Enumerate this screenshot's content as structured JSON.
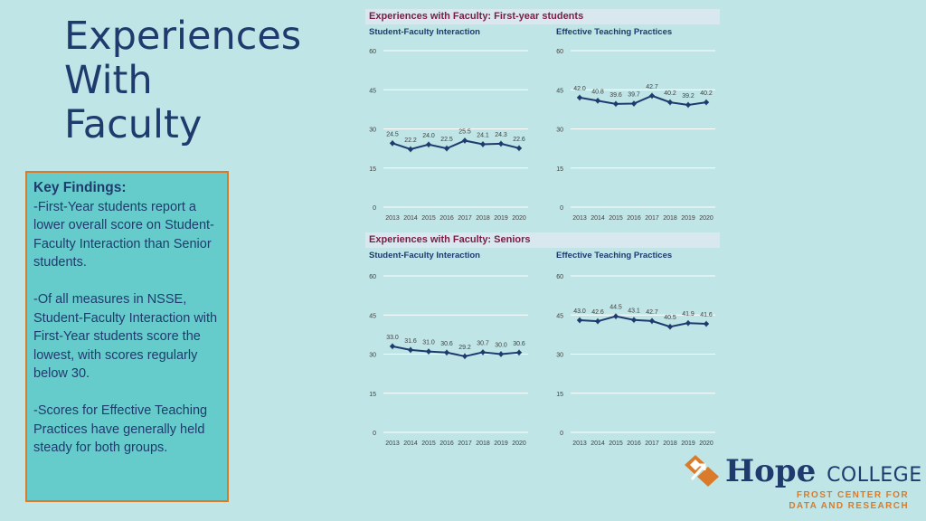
{
  "title_lines": [
    "Experiences",
    "With",
    "Faculty"
  ],
  "findings": {
    "heading": "Key Findings:",
    "items": [
      "-First-Year students report a lower overall score on Student-Faculty Interaction than Senior students.",
      "-Of all measures in NSSE, Student-Faculty Interaction with First-Year students score the lowest, with scores regularly below 30.",
      "-Scores for Effective Teaching Practices have generally held steady for both groups."
    ]
  },
  "sections": [
    {
      "title": "Experiences with Faculty: First-year students"
    },
    {
      "title": "Experiences with Faculty: Seniors"
    }
  ],
  "logo": {
    "brand": "Hope",
    "college": "COLLEGE",
    "line1": "FROST CENTER FOR",
    "line2": "DATA AND RESEARCH"
  },
  "chart_data": [
    {
      "type": "line",
      "title": "Student-Faculty Interaction",
      "group": "First-year students",
      "x": [
        "2013",
        "2014",
        "2015",
        "2016",
        "2017",
        "2018",
        "2019",
        "2020"
      ],
      "values": [
        24.5,
        22.2,
        24.0,
        22.5,
        25.5,
        24.1,
        24.3,
        22.6
      ],
      "labels": [
        "24.5",
        "22.2",
        "24.0",
        "22.5",
        "25.5",
        "24.1",
        "24.3",
        "22.6"
      ],
      "yticks": [
        "0",
        "15",
        "30",
        "45",
        "60"
      ],
      "ylim": [
        0,
        60
      ],
      "color": "#1f3b6e"
    },
    {
      "type": "line",
      "title": "Effective Teaching Practices",
      "group": "First-year students",
      "x": [
        "2013",
        "2014",
        "2015",
        "2016",
        "2017",
        "2018",
        "2019",
        "2020"
      ],
      "values": [
        42.0,
        40.8,
        39.6,
        39.7,
        42.7,
        40.2,
        39.2,
        40.2
      ],
      "labels": [
        "42.0",
        "40.8",
        "39.6",
        "39.7",
        "42.7",
        "40.2",
        "39.2",
        "40.2"
      ],
      "yticks": [
        "0",
        "15",
        "30",
        "45",
        "60"
      ],
      "ylim": [
        0,
        60
      ],
      "color": "#1f3b6e"
    },
    {
      "type": "line",
      "title": "Student-Faculty Interaction",
      "group": "Seniors",
      "x": [
        "2013",
        "2014",
        "2015",
        "2016",
        "2017",
        "2018",
        "2019",
        "2020"
      ],
      "values": [
        33.0,
        31.6,
        31.0,
        30.6,
        29.2,
        30.7,
        30.0,
        30.6
      ],
      "labels": [
        "33.0",
        "31.6",
        "31.0",
        "30.6",
        "29.2",
        "30.7",
        "30.0",
        "30.6"
      ],
      "yticks": [
        "0",
        "15",
        "30",
        "45",
        "60"
      ],
      "ylim": [
        0,
        60
      ],
      "color": "#1f3b6e"
    },
    {
      "type": "line",
      "title": "Effective Teaching Practices",
      "group": "Seniors",
      "x": [
        "2013",
        "2014",
        "2015",
        "2016",
        "2017",
        "2018",
        "2019",
        "2020"
      ],
      "values": [
        43.0,
        42.6,
        44.5,
        43.1,
        42.7,
        40.5,
        41.9,
        41.6
      ],
      "labels": [
        "43.0",
        "42.6",
        "44.5",
        "43.1",
        "42.7",
        "40.5",
        "41.9",
        "41.6"
      ],
      "yticks": [
        "0",
        "15",
        "30",
        "45",
        "60"
      ],
      "ylim": [
        0,
        60
      ],
      "color": "#1f3b6e"
    }
  ]
}
